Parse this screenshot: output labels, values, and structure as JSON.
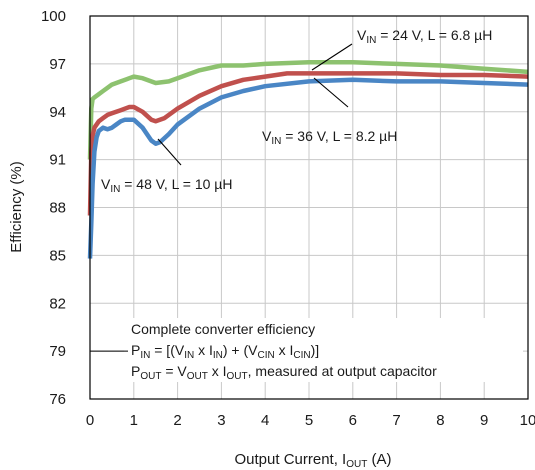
{
  "chart_data": {
    "type": "line",
    "xlabel": {
      "main": "Output Current, I",
      "sub": "OUT",
      "unit": " (A)"
    },
    "ylabel": "Efficiency (%)",
    "xlim": [
      0,
      10
    ],
    "ylim": [
      76,
      100
    ],
    "xticks": [
      0,
      1,
      2,
      3,
      4,
      5,
      6,
      7,
      8,
      9,
      10
    ],
    "yticks": [
      76,
      79,
      82,
      85,
      88,
      91,
      94,
      97,
      100
    ],
    "grid": true,
    "series": [
      {
        "name": "VIN = 24 V, L = 6.8 µH",
        "color": "#8dc26f",
        "x": [
          0.0,
          0.03,
          0.06,
          0.1,
          0.2,
          0.3,
          0.4,
          0.5,
          0.7,
          0.9,
          1.0,
          1.2,
          1.5,
          1.8,
          2.0,
          2.5,
          3.0,
          3.5,
          4.0,
          5.0,
          6.0,
          7.0,
          8.0,
          9.0,
          10.0
        ],
        "y": [
          91.0,
          94.2,
          94.8,
          94.9,
          95.1,
          95.3,
          95.5,
          95.7,
          95.9,
          96.1,
          96.2,
          96.1,
          95.8,
          95.9,
          96.1,
          96.6,
          96.9,
          96.9,
          97.0,
          97.1,
          97.1,
          97.0,
          96.9,
          96.7,
          96.5
        ]
      },
      {
        "name": "VIN = 36 V, L = 8.2 µH",
        "color": "#c0504d",
        "x": [
          0.0,
          0.03,
          0.06,
          0.1,
          0.2,
          0.3,
          0.4,
          0.5,
          0.7,
          0.9,
          1.0,
          1.2,
          1.4,
          1.5,
          1.7,
          2.0,
          2.5,
          3.0,
          3.5,
          4.0,
          4.5,
          5.0,
          6.0,
          7.0,
          8.0,
          9.0,
          10.0
        ],
        "y": [
          87.5,
          91.5,
          92.5,
          93.0,
          93.4,
          93.6,
          93.8,
          93.9,
          94.1,
          94.3,
          94.3,
          94.0,
          93.5,
          93.4,
          93.6,
          94.2,
          95.0,
          95.6,
          96.0,
          96.2,
          96.4,
          96.4,
          96.4,
          96.4,
          96.3,
          96.3,
          96.2
        ]
      },
      {
        "name": "VIN = 48 V, L = 10 µH",
        "color": "#4a86c5",
        "x": [
          0.0,
          0.03,
          0.06,
          0.1,
          0.15,
          0.2,
          0.3,
          0.4,
          0.5,
          0.6,
          0.7,
          0.8,
          0.9,
          1.0,
          1.2,
          1.4,
          1.5,
          1.6,
          1.8,
          2.0,
          2.5,
          3.0,
          3.5,
          4.0,
          5.0,
          6.0,
          7.0,
          8.0,
          9.0,
          10.0
        ],
        "y": [
          84.8,
          87.0,
          89.5,
          91.5,
          92.4,
          92.8,
          93.0,
          92.9,
          93.0,
          93.2,
          93.4,
          93.5,
          93.5,
          93.5,
          93.0,
          92.2,
          92.0,
          92.1,
          92.6,
          93.2,
          94.2,
          94.9,
          95.3,
          95.6,
          95.9,
          96.0,
          95.9,
          95.9,
          95.8,
          95.7
        ]
      }
    ],
    "labels": [
      {
        "pre": "V",
        "sub": "IN",
        "post": " = 24 V, L = 6.8 µH"
      },
      {
        "pre": "V",
        "sub": "IN",
        "post": " = 36 V, L = 8.2 µH"
      },
      {
        "pre": "V",
        "sub": "IN",
        "post": " = 48 V, L = 10 µH"
      }
    ],
    "annotation": {
      "line1": "Complete converter efficiency",
      "line2": [
        {
          "t": "P"
        },
        {
          "t": "IN",
          "sub": true
        },
        {
          "t": " = [(V"
        },
        {
          "t": "IN",
          "sub": true
        },
        {
          "t": " x I"
        },
        {
          "t": "IN",
          "sub": true
        },
        {
          "t": ") + (V"
        },
        {
          "t": "CIN",
          "sub": true
        },
        {
          "t": " x I"
        },
        {
          "t": "CIN",
          "sub": true
        },
        {
          "t": ")]"
        }
      ],
      "line3": [
        {
          "t": "P"
        },
        {
          "t": "OUT",
          "sub": true
        },
        {
          "t": " = V"
        },
        {
          "t": "OUT",
          "sub": true
        },
        {
          "t": " x I"
        },
        {
          "t": "OUT",
          "sub": true
        },
        {
          "t": ", measured at output capacitor"
        }
      ]
    }
  }
}
